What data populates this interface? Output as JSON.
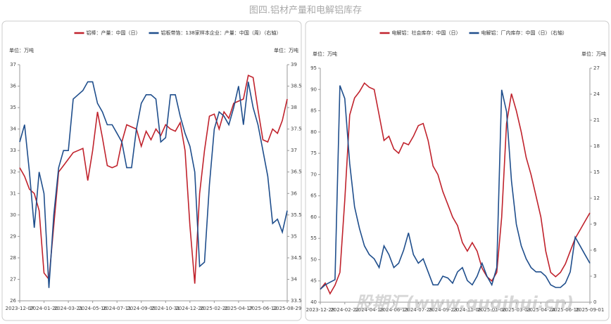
{
  "title": "图四.铝材产量和电解铝库存",
  "watermark": "股期汇(www.gugihui.cn)",
  "chart_data": [
    {
      "type": "line",
      "y_unit_label": "单位：万吨",
      "y2_unit_label": "单位：万吨",
      "categories": [
        "2023-12-07",
        null,
        null,
        null,
        null,
        "2024-01-20",
        null,
        null,
        null,
        null,
        "2024-03-21",
        null,
        null,
        null,
        null,
        "2024-05-16",
        null,
        null,
        null,
        null,
        "2024-07-11",
        null,
        null,
        null,
        null,
        "2024-09-05",
        null,
        null,
        null,
        null,
        "2024-10-31",
        null,
        null,
        null,
        null,
        "2024-12-26",
        null,
        null,
        null,
        null,
        "2025-02-20",
        null,
        null,
        null,
        null,
        "2025-04-17",
        null,
        null,
        null,
        null,
        "2025-06-12",
        null,
        null,
        null,
        null,
        "2025-08-29"
      ],
      "ylim": [
        26,
        37
      ],
      "yticks": [
        26,
        27,
        28,
        29,
        30,
        31,
        32,
        33,
        34,
        35,
        36,
        37
      ],
      "y2lim": [
        33.5,
        39
      ],
      "y2ticks": [
        33.5,
        34,
        34.5,
        35,
        35.5,
        36,
        36.5,
        37,
        37.5,
        38,
        38.5,
        39
      ],
      "series": [
        {
          "name": "铝棒：产量：中国（日）",
          "color": "#c0222c",
          "values": [
            32.2,
            31.8,
            31.2,
            31.0,
            30.2,
            27.3,
            27.0,
            29.5,
            32.0,
            32.3,
            32.6,
            32.9,
            33.0,
            33.1,
            31.6,
            33.0,
            34.8,
            33.6,
            32.3,
            32.2,
            32.3,
            33.4,
            34.2,
            34.1,
            34.0,
            33.2,
            33.9,
            33.5,
            34.0,
            33.7,
            34.2,
            34.0,
            33.9,
            34.3,
            33.0,
            29.5,
            26.8,
            31.0,
            33.0,
            34.6,
            34.7,
            34.0,
            34.8,
            34.5,
            35.2,
            35.3,
            35.4,
            36.5,
            36.4,
            34.9,
            33.5,
            33.4,
            34.0,
            33.8,
            34.4,
            35.4
          ]
        },
        {
          "name": "铝板带箔：138家样本企业：产量：中国（周）（右轴）",
          "color": "#1f4e8c",
          "axis": "y2",
          "values": [
            37.2,
            37.6,
            36.5,
            35.2,
            36.5,
            36.0,
            33.8,
            35.5,
            36.6,
            37.0,
            37.0,
            38.2,
            38.3,
            38.4,
            38.6,
            38.6,
            38.1,
            37.9,
            37.6,
            37.6,
            37.4,
            37.2,
            36.6,
            36.6,
            37.5,
            38.1,
            38.3,
            38.3,
            38.2,
            37.2,
            37.3,
            38.3,
            38.3,
            37.8,
            37.4,
            37.1,
            36.5,
            34.3,
            34.4,
            36.2,
            37.5,
            37.9,
            37.8,
            37.6,
            38.0,
            38.5,
            37.6,
            38.6,
            38.0,
            37.6,
            37.0,
            36.4,
            35.3,
            35.4,
            35.1,
            35.6
          ]
        }
      ]
    },
    {
      "type": "line",
      "y_unit_label": "单位：万吨",
      "y2_unit_label": "单位：万吨",
      "categories": [
        "2023-12-28",
        null,
        null,
        null,
        null,
        "2024-02-22",
        null,
        null,
        null,
        null,
        "2024-04-18",
        null,
        null,
        null,
        null,
        "2024-06-13",
        null,
        null,
        null,
        null,
        "2024-07-29",
        null,
        null,
        null,
        null,
        "2024-09-23",
        null,
        null,
        null,
        null,
        "2024-11-08",
        null,
        null,
        null,
        null,
        "2025-01-06",
        null,
        null,
        null,
        null,
        "2025-03-03",
        null,
        null,
        null,
        null,
        "2025-04-24",
        null,
        null,
        null,
        null,
        "2025-06-16",
        null,
        null,
        null,
        null,
        "2025-09-01"
      ],
      "ylim": [
        40,
        95
      ],
      "yticks": [
        40,
        45,
        50,
        55,
        60,
        65,
        70,
        75,
        80,
        85,
        90,
        95
      ],
      "y2lim": [
        0,
        27
      ],
      "y2ticks": [
        0,
        3,
        6,
        9,
        12,
        15,
        18,
        21,
        24,
        27
      ],
      "series": [
        {
          "name": "电解铝：社会库存：中国（日）",
          "color": "#c0222c",
          "values": [
            43,
            44.5,
            42,
            44,
            47,
            64,
            84,
            88,
            89.5,
            91.5,
            90.5,
            90,
            84,
            78,
            79,
            76,
            75,
            77.5,
            77,
            79,
            81.5,
            82,
            78,
            72,
            70,
            66,
            63,
            60,
            58,
            54,
            52,
            54,
            52,
            48,
            46,
            45,
            47,
            60,
            82,
            89,
            85,
            80,
            74,
            70,
            65,
            60,
            52,
            47,
            46,
            47,
            49,
            52,
            55,
            57,
            59,
            61
          ]
        },
        {
          "name": "电解铝：厂内库存：中国（日）（右轴）",
          "color": "#1f4e8c",
          "axis": "y2",
          "values": [
            1.5,
            2.0,
            2.3,
            2.6,
            25.0,
            23.5,
            16,
            11,
            8.5,
            6.5,
            5.5,
            5.0,
            4.0,
            6.5,
            5.5,
            4.0,
            4.5,
            6.0,
            8.0,
            5.5,
            4.5,
            5.0,
            3.5,
            2.0,
            2.0,
            3.0,
            2.8,
            2.2,
            3.5,
            4.0,
            2.5,
            2.0,
            3.0,
            4.5,
            3.0,
            2.0,
            4.0,
            24.5,
            22,
            14,
            9,
            6.5,
            5,
            4,
            3.5,
            3.5,
            3.0,
            2.0,
            1.7,
            1.7,
            2.2,
            3.5,
            7.5,
            6.5,
            5.5,
            4.5
          ]
        }
      ]
    }
  ]
}
